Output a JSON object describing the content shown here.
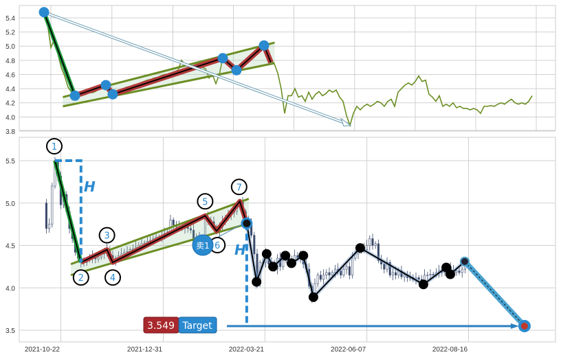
{
  "chart_data": {
    "type": "line",
    "panels": [
      {
        "name": "overview",
        "yticks": [
          "3.8",
          "4.0",
          "4.2",
          "4.4",
          "4.6",
          "4.8",
          "5.0",
          "5.2",
          "5.4"
        ],
        "ylim": [
          3.8,
          5.4
        ],
        "grid": true
      },
      {
        "name": "pattern",
        "type": "candlestick",
        "yticks": [
          "3.5",
          "4.0",
          "4.5",
          "5.0",
          "5.5"
        ],
        "ylim": [
          3.4,
          5.72
        ],
        "xticks": [
          {
            "label": "2021-10-22",
            "i": 2
          },
          {
            "label": "2021-12-31",
            "i": 37.5
          },
          {
            "label": "2022-03-21",
            "i": 72.7
          },
          {
            "label": "2022-06-07",
            "i": 108
          },
          {
            "label": "2022-08-16",
            "i": 143.2
          }
        ],
        "grid": true
      }
    ],
    "pre_close": [
      5.0,
      4.7,
      4.75,
      5.2
    ],
    "close": [
      5.48,
      5.32,
      4.98,
      5.1,
      4.9,
      4.7,
      4.58,
      4.42,
      4.35,
      4.3,
      4.3,
      4.33,
      4.35,
      4.37,
      4.34,
      4.36,
      4.4,
      4.42,
      4.45,
      4.38,
      4.32,
      4.35,
      4.38,
      4.4,
      4.42,
      4.43,
      4.45,
      4.46,
      4.48,
      4.5,
      4.52,
      4.53,
      4.55,
      4.56,
      4.58,
      4.6,
      4.6,
      4.62,
      4.64,
      4.66,
      4.8,
      4.74,
      4.72,
      4.72,
      4.7,
      4.72,
      4.7,
      4.68,
      4.55,
      4.6,
      4.47,
      4.6,
      4.83,
      4.8,
      4.78,
      4.72,
      4.66,
      4.72,
      4.78,
      4.82,
      4.86,
      4.88,
      4.9,
      4.95,
      5.01,
      4.9,
      4.8,
      4.75,
      4.62,
      4.4,
      4.05,
      4.3,
      4.3,
      4.4,
      4.28,
      4.3,
      4.22,
      4.35,
      4.25,
      4.32,
      4.36,
      4.3,
      4.33,
      4.38,
      4.35,
      4.38,
      4.28,
      4.22,
      4.02,
      3.88,
      4.05,
      4.15,
      4.1,
      4.15,
      4.18,
      4.15,
      4.18,
      4.22,
      4.2,
      4.15,
      4.22,
      4.25,
      4.15,
      4.35,
      4.4,
      4.45,
      4.48,
      4.45,
      4.5,
      4.58,
      4.5,
      4.52,
      4.32,
      4.28,
      4.22,
      4.3,
      4.15,
      4.18,
      4.15,
      4.2,
      4.13,
      4.15,
      4.12,
      4.12,
      4.1,
      4.12,
      4.1,
      4.05,
      4.15,
      4.15,
      4.16,
      4.15,
      4.18,
      4.2,
      4.18,
      4.22,
      4.25,
      4.2,
      4.18,
      4.2,
      4.18,
      4.22,
      4.3
    ],
    "pattern_pivots": [
      {
        "label": "1",
        "i": 0,
        "v": 5.5
      },
      {
        "label": "2",
        "i": 9,
        "v": 4.3
      },
      {
        "label": "3",
        "i": 18,
        "v": 4.45
      },
      {
        "label": "4",
        "i": 20,
        "v": 4.3
      },
      {
        "label": "5",
        "i": 52,
        "v": 4.85
      },
      {
        "label": "6",
        "i": 56,
        "v": 4.67
      },
      {
        "label": "7",
        "i": 64,
        "v": 5.02
      }
    ],
    "pattern_end": {
      "i": 66.4,
      "v": 4.76
    },
    "channel_upper": [
      {
        "i": 5.5,
        "v": 4.28
      },
      {
        "i": 67.1,
        "v": 5.05
      }
    ],
    "channel_lower": [
      {
        "i": 5.5,
        "v": 4.15
      },
      {
        "i": 67.1,
        "v": 4.76
      }
    ],
    "overview_arrow": [
      {
        "i": 0,
        "v": 5.48
      },
      {
        "i": 89.2,
        "v": 3.88
      }
    ],
    "zigzag": [
      {
        "i": 66.4,
        "v": 4.76
      },
      {
        "i": 69.8,
        "v": 4.07
      },
      {
        "i": 73.3,
        "v": 4.4
      },
      {
        "i": 75.5,
        "v": 4.25
      },
      {
        "i": 79.8,
        "v": 4.38
      },
      {
        "i": 81.9,
        "v": 4.29
      },
      {
        "i": 86,
        "v": 4.38
      },
      {
        "i": 89.5,
        "v": 3.89
      },
      {
        "i": 105.7,
        "v": 4.47
      },
      {
        "i": 127.6,
        "v": 4.04
      },
      {
        "i": 135.5,
        "v": 4.24
      },
      {
        "i": 136.9,
        "v": 4.16
      },
      {
        "i": 141.9,
        "v": 4.31
      }
    ],
    "target": {
      "i": 162.6,
      "v": 3.549,
      "value_label": "3.549",
      "label": "Target"
    },
    "height_label": "H",
    "sell_signal": {
      "label": "卖1",
      "i": 51.5,
      "v": 4.48
    },
    "colors": {
      "drop": "#1e9b3c",
      "zigzag": "#b23a3a",
      "channel": "#6b8e23",
      "accent": "#2a8ad0",
      "candle": "#3b4a6b",
      "line": "#6b8e23"
    }
  }
}
